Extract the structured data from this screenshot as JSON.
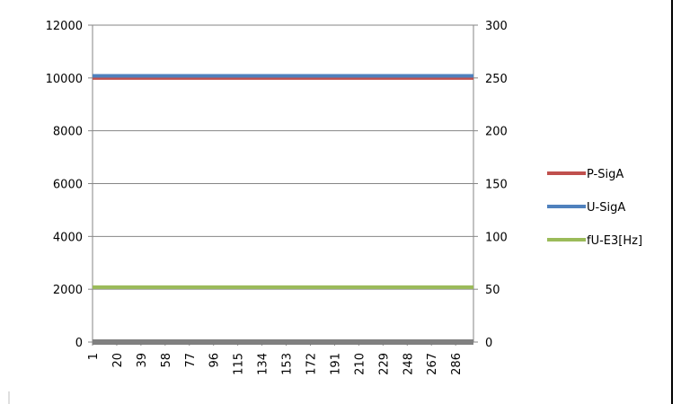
{
  "chart_data": {
    "type": "line",
    "title": "",
    "xlabel": "",
    "ylabel": "",
    "x_ticks": [
      "1",
      "20",
      "39",
      "58",
      "77",
      "96",
      "115",
      "134",
      "153",
      "172",
      "191",
      "210",
      "229",
      "248",
      "267",
      "286"
    ],
    "x_range": [
      1,
      300
    ],
    "ylim": [
      0,
      12000
    ],
    "y_ticks": [
      "0",
      "2000",
      "4000",
      "6000",
      "8000",
      "10000",
      "12000"
    ],
    "y2lim": [
      0,
      300
    ],
    "y2_ticks": [
      "0",
      "50",
      "100",
      "150",
      "200",
      "250",
      "300"
    ],
    "grid": true,
    "legend_position": "right",
    "series": [
      {
        "name": "P-SigA",
        "axis": "secondary",
        "color": "#c0504d",
        "x": [
          1,
          300
        ],
        "values": [
          250,
          250
        ]
      },
      {
        "name": "U-SigA",
        "axis": "secondary",
        "color": "#4f81bd",
        "x": [
          1,
          300
        ],
        "values": [
          252,
          252
        ]
      },
      {
        "name": "fU-E3[Hz]",
        "axis": "secondary",
        "color": "#9bbb59",
        "x": [
          1,
          300
        ],
        "values": [
          52,
          52
        ]
      },
      {
        "name": "",
        "axis": "primary",
        "color": "#808080",
        "x": [
          1,
          300
        ],
        "values": [
          0,
          0
        ]
      }
    ]
  }
}
